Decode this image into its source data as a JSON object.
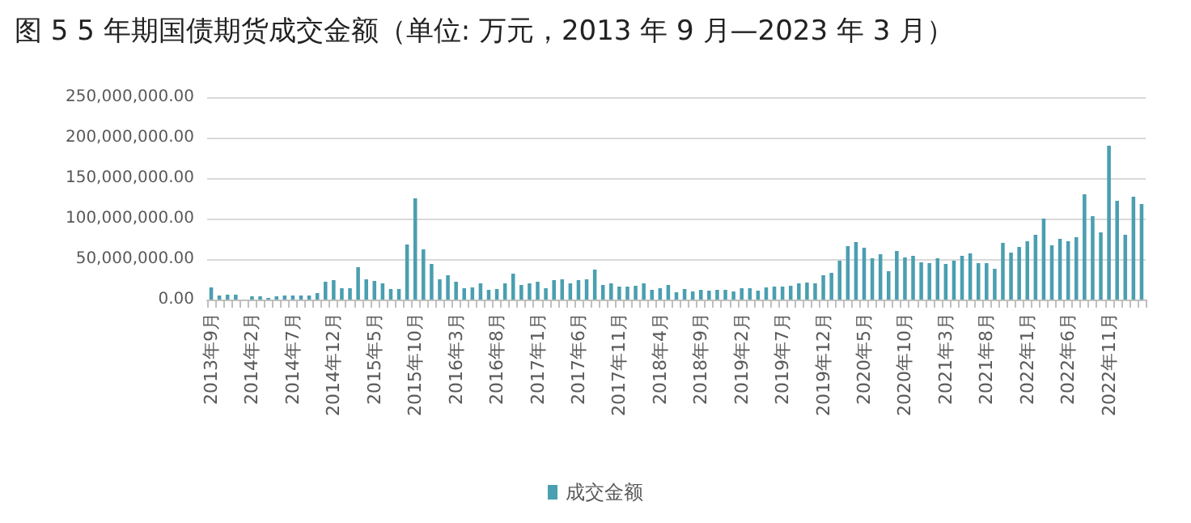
{
  "chart_data": {
    "type": "bar",
    "title": "图 5 5 年期国债期货成交金额（单位: 万元，2013 年 9 月—2023 年 3 月）",
    "categories": [
      "2013年9月",
      null,
      null,
      null,
      null,
      "2014年2月",
      null,
      null,
      null,
      null,
      "2014年7月",
      null,
      null,
      null,
      null,
      "2014年12月",
      null,
      null,
      null,
      null,
      "2015年5月",
      null,
      null,
      null,
      null,
      "2015年10月",
      null,
      null,
      null,
      null,
      "2016年3月",
      null,
      null,
      null,
      null,
      "2016年8月",
      null,
      null,
      null,
      null,
      "2017年1月",
      null,
      null,
      null,
      null,
      "2017年6月",
      null,
      null,
      null,
      null,
      "2017年11月",
      null,
      null,
      null,
      null,
      "2018年4月",
      null,
      null,
      null,
      null,
      "2018年9月",
      null,
      null,
      null,
      null,
      "2019年2月",
      null,
      null,
      null,
      null,
      "2019年7月",
      null,
      null,
      null,
      null,
      "2019年12月",
      null,
      null,
      null,
      null,
      "2020年5月",
      null,
      null,
      null,
      null,
      "2020年10月",
      null,
      null,
      null,
      null,
      "2021年3月",
      null,
      null,
      null,
      null,
      "2021年8月",
      null,
      null,
      null,
      null,
      "2022年1月",
      null,
      null,
      null,
      null,
      "2022年6月",
      null,
      null,
      null,
      null,
      "2022年11月",
      null,
      null,
      null,
      null
    ],
    "series": [
      {
        "name": "成交金额",
        "color": "#4a9fb0",
        "values": [
          15000000,
          5000000,
          6000000,
          6000000,
          null,
          4000000,
          4000000,
          2000000,
          4000000,
          5000000,
          5000000,
          5000000,
          5000000,
          8000000,
          22000000,
          24000000,
          14000000,
          14000000,
          40000000,
          25000000,
          23000000,
          20000000,
          13000000,
          13000000,
          68000000,
          125000000,
          62000000,
          44000000,
          25000000,
          30000000,
          22000000,
          14000000,
          15000000,
          20000000,
          12000000,
          13000000,
          20000000,
          32000000,
          18000000,
          20000000,
          22000000,
          14000000,
          24000000,
          25000000,
          20000000,
          24000000,
          25000000,
          37000000,
          18000000,
          20000000,
          16000000,
          16000000,
          17000000,
          20000000,
          12000000,
          14000000,
          18000000,
          9000000,
          13000000,
          10000000,
          12000000,
          11000000,
          12000000,
          12000000,
          10000000,
          14000000,
          14000000,
          11000000,
          15000000,
          16000000,
          16000000,
          17000000,
          20000000,
          21000000,
          20000000,
          30000000,
          33000000,
          48000000,
          66000000,
          71000000,
          64000000,
          51000000,
          56000000,
          35000000,
          60000000,
          52000000,
          54000000,
          46000000,
          45000000,
          51000000,
          44000000,
          48000000,
          54000000,
          57000000,
          45000000,
          45000000,
          38000000,
          70000000,
          58000000,
          65000000,
          72000000,
          80000000,
          100000000,
          67000000,
          75000000,
          72000000,
          77000000,
          130000000,
          103000000,
          83000000,
          190000000,
          122000000,
          80000000,
          127000000,
          118000000
        ]
      }
    ],
    "ylim": [
      0,
      250000000
    ],
    "yticks": [
      {
        "value": 0,
        "label": "0.00"
      },
      {
        "value": 50000000,
        "label": "50,000,000.00"
      },
      {
        "value": 100000000,
        "label": "100,000,000.00"
      },
      {
        "value": 150000000,
        "label": "150,000,000.00"
      },
      {
        "value": 200000000,
        "label": "200,000,000.00"
      },
      {
        "value": 250000000,
        "label": "250,000,000.00"
      }
    ],
    "grid": "y",
    "legend": "bottom"
  }
}
